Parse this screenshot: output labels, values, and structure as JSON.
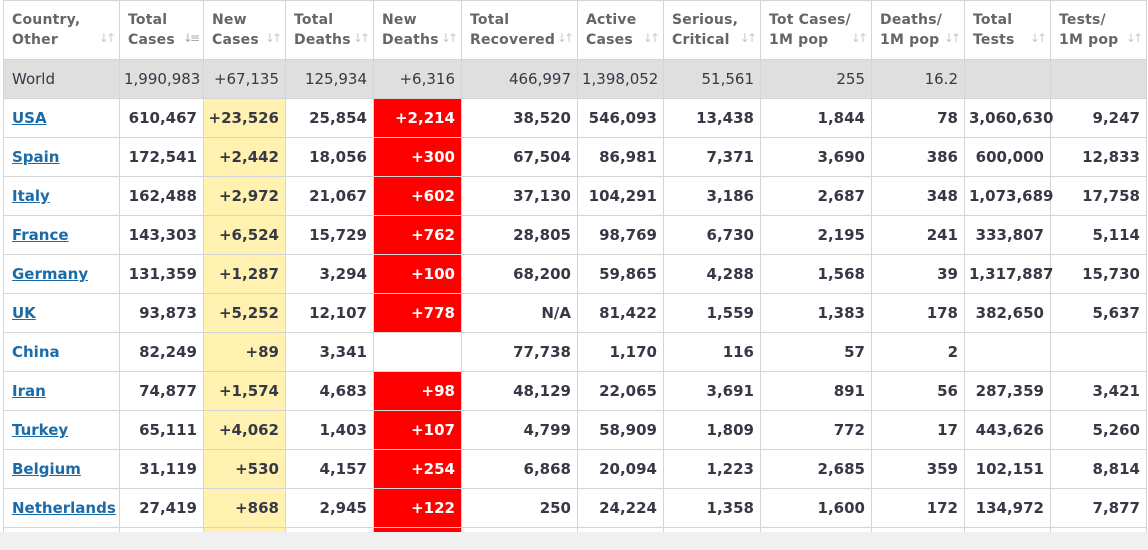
{
  "headers": [
    {
      "line1": "Country,",
      "line2": "Other"
    },
    {
      "line1": "Total",
      "line2": "Cases"
    },
    {
      "line1": "New",
      "line2": "Cases"
    },
    {
      "line1": "Total",
      "line2": "Deaths"
    },
    {
      "line1": "New",
      "line2": "Deaths"
    },
    {
      "line1": "Total",
      "line2": "Recovered"
    },
    {
      "line1": "Active",
      "line2": "Cases"
    },
    {
      "line1": "Serious,",
      "line2": "Critical"
    },
    {
      "line1": "Tot Cases/",
      "line2": "1M pop"
    },
    {
      "line1": "Deaths/",
      "line2": "1M pop"
    },
    {
      "line1": "Total",
      "line2": "Tests"
    },
    {
      "line1": "Tests/",
      "line2": "1M pop"
    }
  ],
  "world": {
    "country": "World",
    "total_cases": "1,990,983",
    "new_cases": "+67,135",
    "total_deaths": "125,934",
    "new_deaths": "+6,316",
    "total_recovered": "466,997",
    "active_cases": "1,398,052",
    "serious": "51,561",
    "cases_per_1m": "255",
    "deaths_per_1m": "16.2",
    "total_tests": "",
    "tests_per_1m": ""
  },
  "rows": [
    {
      "country": "USA",
      "total_cases": "610,467",
      "new_cases": "+23,526",
      "total_deaths": "25,854",
      "new_deaths": "+2,214",
      "total_recovered": "38,520",
      "active_cases": "546,093",
      "serious": "13,438",
      "cases_per_1m": "1,844",
      "deaths_per_1m": "78",
      "total_tests": "3,060,630",
      "tests_per_1m": "9,247",
      "link": true
    },
    {
      "country": "Spain",
      "total_cases": "172,541",
      "new_cases": "+2,442",
      "total_deaths": "18,056",
      "new_deaths": "+300",
      "total_recovered": "67,504",
      "active_cases": "86,981",
      "serious": "7,371",
      "cases_per_1m": "3,690",
      "deaths_per_1m": "386",
      "total_tests": "600,000",
      "tests_per_1m": "12,833",
      "link": true
    },
    {
      "country": "Italy",
      "total_cases": "162,488",
      "new_cases": "+2,972",
      "total_deaths": "21,067",
      "new_deaths": "+602",
      "total_recovered": "37,130",
      "active_cases": "104,291",
      "serious": "3,186",
      "cases_per_1m": "2,687",
      "deaths_per_1m": "348",
      "total_tests": "1,073,689",
      "tests_per_1m": "17,758",
      "link": true
    },
    {
      "country": "France",
      "total_cases": "143,303",
      "new_cases": "+6,524",
      "total_deaths": "15,729",
      "new_deaths": "+762",
      "total_recovered": "28,805",
      "active_cases": "98,769",
      "serious": "6,730",
      "cases_per_1m": "2,195",
      "deaths_per_1m": "241",
      "total_tests": "333,807",
      "tests_per_1m": "5,114",
      "link": true
    },
    {
      "country": "Germany",
      "total_cases": "131,359",
      "new_cases": "+1,287",
      "total_deaths": "3,294",
      "new_deaths": "+100",
      "total_recovered": "68,200",
      "active_cases": "59,865",
      "serious": "4,288",
      "cases_per_1m": "1,568",
      "deaths_per_1m": "39",
      "total_tests": "1,317,887",
      "tests_per_1m": "15,730",
      "link": true
    },
    {
      "country": "UK",
      "total_cases": "93,873",
      "new_cases": "+5,252",
      "total_deaths": "12,107",
      "new_deaths": "+778",
      "total_recovered": "N/A",
      "active_cases": "81,422",
      "serious": "1,559",
      "cases_per_1m": "1,383",
      "deaths_per_1m": "178",
      "total_tests": "382,650",
      "tests_per_1m": "5,637",
      "link": true
    },
    {
      "country": "China",
      "total_cases": "82,249",
      "new_cases": "+89",
      "total_deaths": "3,341",
      "new_deaths": "",
      "total_recovered": "77,738",
      "active_cases": "1,170",
      "serious": "116",
      "cases_per_1m": "57",
      "deaths_per_1m": "2",
      "total_tests": "",
      "tests_per_1m": "",
      "link": false
    },
    {
      "country": "Iran",
      "total_cases": "74,877",
      "new_cases": "+1,574",
      "total_deaths": "4,683",
      "new_deaths": "+98",
      "total_recovered": "48,129",
      "active_cases": "22,065",
      "serious": "3,691",
      "cases_per_1m": "891",
      "deaths_per_1m": "56",
      "total_tests": "287,359",
      "tests_per_1m": "3,421",
      "link": true
    },
    {
      "country": "Turkey",
      "total_cases": "65,111",
      "new_cases": "+4,062",
      "total_deaths": "1,403",
      "new_deaths": "+107",
      "total_recovered": "4,799",
      "active_cases": "58,909",
      "serious": "1,809",
      "cases_per_1m": "772",
      "deaths_per_1m": "17",
      "total_tests": "443,626",
      "tests_per_1m": "5,260",
      "link": true
    },
    {
      "country": "Belgium",
      "total_cases": "31,119",
      "new_cases": "+530",
      "total_deaths": "4,157",
      "new_deaths": "+254",
      "total_recovered": "6,868",
      "active_cases": "20,094",
      "serious": "1,223",
      "cases_per_1m": "2,685",
      "deaths_per_1m": "359",
      "total_tests": "102,151",
      "tests_per_1m": "8,814",
      "link": true
    },
    {
      "country": "Netherlands",
      "total_cases": "27,419",
      "new_cases": "+868",
      "total_deaths": "2,945",
      "new_deaths": "+122",
      "total_recovered": "250",
      "active_cases": "24,224",
      "serious": "1,358",
      "cases_per_1m": "1,600",
      "deaths_per_1m": "172",
      "total_tests": "134,972",
      "tests_per_1m": "7,877",
      "link": true
    }
  ],
  "colors": {
    "new_cases_bg": "#fff2b0",
    "new_deaths_bg": "#ff0000",
    "world_bg": "#dfdfdf",
    "link": "#1b6ba8"
  }
}
